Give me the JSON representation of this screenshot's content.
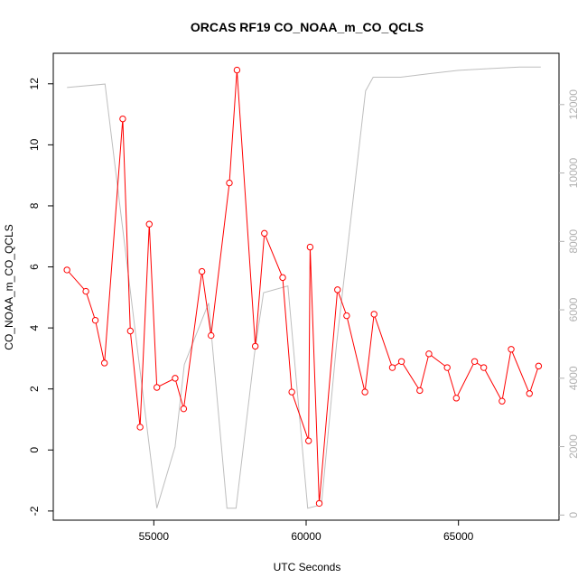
{
  "chart_data": {
    "type": "line",
    "title": "ORCAS RF19 CO_NOAA_m_CO_QCLS",
    "xlabel": "UTC Seconds",
    "ylabel": "CO_NOAA_m_CO_QCLS",
    "xlim": [
      51700,
      68300
    ],
    "ylim": [
      -2.3,
      13.0
    ],
    "xticks": [
      55000,
      60000,
      65000
    ],
    "yticks": [
      -2,
      0,
      2,
      4,
      6,
      8,
      10,
      12
    ],
    "y2lim": [
      -150,
      13500
    ],
    "y2ticks": [
      0,
      2000,
      4000,
      6000,
      8000,
      10000,
      12000
    ],
    "grid": false,
    "legend": "none",
    "series": [
      {
        "color": "#ff0000",
        "axis": "left",
        "marker": "open-circle",
        "x": [
          52150,
          52770,
          53080,
          53380,
          53980,
          54230,
          54550,
          54850,
          55100,
          55700,
          55980,
          56580,
          56880,
          57480,
          57730,
          58330,
          58630,
          59230,
          59530,
          60080,
          60130,
          60430,
          61030,
          61330,
          61930,
          62230,
          62830,
          63130,
          63730,
          64030,
          64630,
          64930,
          65530,
          65830,
          66430,
          66730,
          67330,
          67630
        ],
        "y": [
          5.9,
          5.2,
          4.25,
          2.85,
          10.85,
          3.9,
          0.75,
          7.4,
          2.05,
          2.35,
          1.35,
          5.85,
          3.75,
          8.75,
          12.45,
          3.4,
          7.1,
          5.65,
          1.9,
          0.3,
          6.65,
          -1.75,
          5.25,
          4.4,
          1.9,
          4.45,
          2.7,
          2.9,
          1.95,
          3.15,
          2.7,
          1.7,
          2.9,
          2.7,
          1.6,
          3.3,
          1.85,
          2.75
        ]
      },
      {
        "color": "#bebebe",
        "axis": "right",
        "marker": "none",
        "x": [
          52150,
          53400,
          55100,
          55700,
          56000,
          56800,
          57400,
          57700,
          58300,
          58600,
          59400,
          60050,
          60500,
          61000,
          61950,
          62200,
          63100,
          64000,
          65000,
          66000,
          67000,
          67700
        ],
        "y": [
          12500,
          12600,
          200,
          2000,
          4400,
          6200,
          200,
          200,
          4700,
          6500,
          6700,
          200,
          300,
          5000,
          12400,
          12800,
          12800,
          12900,
          13000,
          13050,
          13100,
          13100
        ]
      }
    ]
  }
}
